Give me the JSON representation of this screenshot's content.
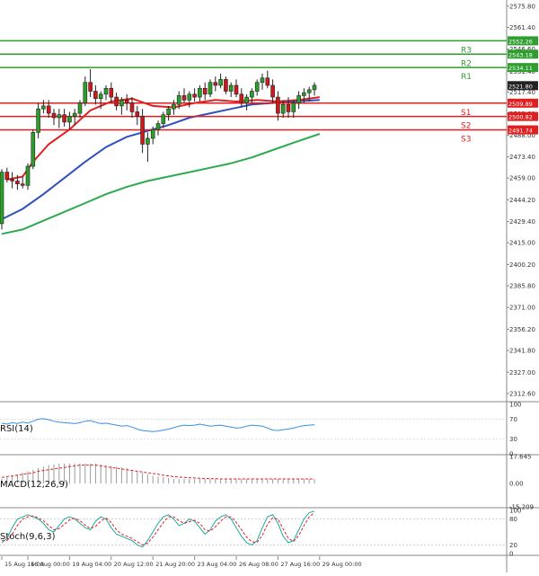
{
  "chart_data": {
    "type": "candlestick",
    "price_axis": {
      "ticks": [
        "2575.80",
        "2561.40",
        "2546.60",
        "2531.40",
        "2517.40",
        "2502.60",
        "2488.00",
        "2473.40",
        "2459.00",
        "2444.20",
        "2429.40",
        "2415.00",
        "2400.20",
        "2385.80",
        "2371.00",
        "2356.20",
        "2341.80",
        "2327.00",
        "2312.60"
      ],
      "ylim": [
        2307,
        2580
      ]
    },
    "time_axis": {
      "labels": [
        "15 Aug 16:00",
        "16 Aug 00:00",
        "19 Aug 04:00",
        "20 Aug 12:00",
        "21 Aug 20:00",
        "23 Aug 04:00",
        "26 Aug 08:00",
        "27 Aug 16:00",
        "29 Aug 00:00"
      ],
      "label_bar_index": [
        0,
        5,
        13,
        21,
        29,
        37,
        45,
        53,
        61
      ]
    },
    "levels": [
      {
        "name": "R3",
        "value": 2552.26,
        "value_label": "2552.26",
        "color": "#2e9e2e"
      },
      {
        "name": "R2",
        "value": 2543.18,
        "value_label": "2543.18",
        "color": "#2e9e2e"
      },
      {
        "name": "R1",
        "value": 2534.11,
        "value_label": "2534.11",
        "color": "#2e9e2e"
      },
      {
        "name": "S1",
        "value": 2509.89,
        "value_label": "2509.89",
        "color": "#e02020"
      },
      {
        "name": "S2",
        "value": 2500.82,
        "value_label": "2500.82",
        "color": "#e02020"
      },
      {
        "name": "S3",
        "value": 2491.74,
        "value_label": "2491.74",
        "color": "#e02020"
      }
    ],
    "current_price": {
      "value": 2521.8,
      "label": "2521.80"
    },
    "candles": [
      [
        2428,
        2465,
        2424,
        2463
      ],
      [
        2463,
        2466,
        2456,
        2458
      ],
      [
        2458,
        2463,
        2452,
        2457
      ],
      [
        2457,
        2461,
        2451,
        2455
      ],
      [
        2455,
        2460,
        2452,
        2454
      ],
      [
        2454,
        2469,
        2451,
        2467
      ],
      [
        2467,
        2492,
        2465,
        2490
      ],
      [
        2490,
        2510,
        2486,
        2506
      ],
      [
        2506,
        2512,
        2503,
        2508
      ],
      [
        2508,
        2512,
        2500,
        2503
      ],
      [
        2503,
        2506,
        2495,
        2500
      ],
      [
        2500,
        2506,
        2493,
        2502
      ],
      [
        2502,
        2506,
        2494,
        2497
      ],
      [
        2497,
        2504,
        2492,
        2501
      ],
      [
        2501,
        2506,
        2495,
        2503
      ],
      [
        2503,
        2512,
        2500,
        2510
      ],
      [
        2510,
        2528,
        2508,
        2524
      ],
      [
        2524,
        2533,
        2514,
        2518
      ],
      [
        2518,
        2522,
        2509,
        2513
      ],
      [
        2513,
        2518,
        2506,
        2516
      ],
      [
        2516,
        2522,
        2512,
        2520
      ],
      [
        2520,
        2524,
        2510,
        2514
      ],
      [
        2514,
        2517,
        2505,
        2508
      ],
      [
        2508,
        2514,
        2502,
        2512
      ],
      [
        2512,
        2516,
        2505,
        2510
      ],
      [
        2510,
        2514,
        2500,
        2504
      ],
      [
        2504,
        2508,
        2495,
        2501
      ],
      [
        2501,
        2506,
        2476,
        2482
      ],
      [
        2482,
        2490,
        2470,
        2486
      ],
      [
        2486,
        2494,
        2482,
        2492
      ],
      [
        2492,
        2498,
        2488,
        2496
      ],
      [
        2496,
        2504,
        2493,
        2502
      ],
      [
        2502,
        2508,
        2498,
        2506
      ],
      [
        2506,
        2512,
        2502,
        2509
      ],
      [
        2509,
        2518,
        2506,
        2515
      ],
      [
        2515,
        2520,
        2510,
        2512
      ],
      [
        2512,
        2518,
        2507,
        2516
      ],
      [
        2516,
        2520,
        2511,
        2514
      ],
      [
        2514,
        2522,
        2511,
        2520
      ],
      [
        2520,
        2524,
        2512,
        2516
      ],
      [
        2516,
        2526,
        2514,
        2524
      ],
      [
        2524,
        2528,
        2518,
        2522
      ],
      [
        2522,
        2530,
        2520,
        2526
      ],
      [
        2526,
        2528,
        2516,
        2518
      ],
      [
        2518,
        2524,
        2514,
        2522
      ],
      [
        2522,
        2526,
        2514,
        2516
      ],
      [
        2516,
        2520,
        2507,
        2510
      ],
      [
        2510,
        2516,
        2505,
        2514
      ],
      [
        2514,
        2520,
        2510,
        2518
      ],
      [
        2518,
        2526,
        2515,
        2524
      ],
      [
        2524,
        2530,
        2519,
        2527
      ],
      [
        2527,
        2532,
        2520,
        2522
      ],
      [
        2522,
        2526,
        2510,
        2514
      ],
      [
        2514,
        2518,
        2498,
        2503
      ],
      [
        2503,
        2512,
        2500,
        2509
      ],
      [
        2509,
        2514,
        2500,
        2504
      ],
      [
        2504,
        2512,
        2500,
        2510
      ],
      [
        2510,
        2518,
        2506,
        2515
      ],
      [
        2515,
        2520,
        2510,
        2517
      ],
      [
        2517,
        2521,
        2511,
        2519
      ],
      [
        2519,
        2524,
        2515,
        2522
      ]
    ],
    "ma_fast": {
      "color": "#e02020",
      "points": [
        [
          1,
          2458
        ],
        [
          4,
          2460
        ],
        [
          6,
          2470
        ],
        [
          9,
          2482
        ],
        [
          13,
          2492
        ],
        [
          17,
          2505
        ],
        [
          21,
          2511
        ],
        [
          25,
          2513
        ],
        [
          29,
          2508
        ],
        [
          33,
          2507
        ],
        [
          37,
          2510
        ],
        [
          41,
          2512
        ],
        [
          45,
          2511
        ],
        [
          49,
          2512
        ],
        [
          53,
          2511
        ],
        [
          57,
          2512
        ],
        [
          61,
          2514
        ]
      ]
    },
    "ma_mid": {
      "color": "#3050c0",
      "points": [
        [
          0,
          2431
        ],
        [
          4,
          2438
        ],
        [
          8,
          2448
        ],
        [
          12,
          2459
        ],
        [
          16,
          2470
        ],
        [
          20,
          2480
        ],
        [
          24,
          2487
        ],
        [
          28,
          2491
        ],
        [
          32,
          2495
        ],
        [
          36,
          2500
        ],
        [
          40,
          2503
        ],
        [
          44,
          2506
        ],
        [
          48,
          2509
        ],
        [
          52,
          2510
        ],
        [
          56,
          2511
        ],
        [
          61,
          2512
        ]
      ]
    },
    "ma_slow": {
      "color": "#2eaa4e",
      "points": [
        [
          0,
          2421
        ],
        [
          4,
          2424
        ],
        [
          8,
          2430
        ],
        [
          12,
          2436
        ],
        [
          16,
          2442
        ],
        [
          20,
          2448
        ],
        [
          24,
          2453
        ],
        [
          28,
          2457
        ],
        [
          32,
          2460
        ],
        [
          36,
          2463
        ],
        [
          40,
          2466
        ],
        [
          44,
          2469
        ],
        [
          48,
          2473
        ],
        [
          52,
          2478
        ],
        [
          56,
          2483
        ],
        [
          61,
          2489
        ]
      ]
    },
    "rsi": {
      "label": "RSI(14)",
      "ticks": [
        "100",
        "70",
        "30",
        "0"
      ],
      "levels": [
        100,
        70,
        30,
        0
      ],
      "values": [
        62,
        60,
        63,
        61,
        64,
        62,
        66,
        70,
        71,
        69,
        66,
        64,
        63,
        62,
        61,
        63,
        66,
        67,
        64,
        61,
        62,
        60,
        58,
        56,
        57,
        54,
        50,
        47,
        46,
        45,
        46,
        48,
        50,
        53,
        56,
        58,
        57,
        58,
        60,
        58,
        56,
        57,
        58,
        56,
        54,
        52,
        53,
        56,
        58,
        57,
        56,
        52,
        48,
        47,
        49,
        50,
        52,
        55,
        57,
        58,
        59
      ]
    },
    "macd": {
      "label": "MACD(12,26,9)",
      "ticks": [
        "17.645",
        "0.00",
        "-15.209"
      ],
      "range": [
        -15.209,
        17.645
      ],
      "hist": [
        3,
        4,
        5,
        6,
        7,
        8,
        9,
        10,
        11,
        12,
        12.5,
        13,
        13,
        13,
        13,
        13,
        13,
        13,
        13,
        12.5,
        12,
        11.5,
        11,
        10.5,
        10,
        9,
        8,
        7,
        6,
        5,
        4.5,
        4,
        3.5,
        3,
        3,
        3,
        3,
        3,
        3,
        3,
        3,
        3,
        3,
        3,
        3,
        3,
        3,
        3,
        3,
        3,
        3,
        3,
        3,
        3,
        3,
        3,
        3,
        3,
        3,
        3,
        3
      ],
      "signal": [
        4,
        4.5,
        5,
        5.5,
        6,
        6.5,
        7,
        8,
        8.5,
        9,
        9.5,
        10,
        10.5,
        11,
        11.5,
        12,
        12,
        12,
        12,
        11.5,
        11,
        10.5,
        10,
        9.5,
        9,
        8.5,
        8,
        7.5,
        7,
        6.5,
        6,
        5.5,
        5,
        4.5,
        4.2,
        4,
        3.8,
        3.6,
        3.4,
        3.3,
        3.2,
        3.1,
        3,
        3,
        3,
        3,
        3,
        3,
        3,
        3,
        3,
        3,
        3,
        3,
        3,
        3,
        3,
        3,
        3,
        3,
        3
      ]
    },
    "stoch": {
      "label": "Stoch(9,6,3)",
      "ticks": [
        "100",
        "80",
        "20",
        "0"
      ],
      "levels": [
        100,
        80,
        20,
        0
      ],
      "k": [
        25,
        35,
        60,
        80,
        85,
        90,
        85,
        80,
        70,
        55,
        50,
        65,
        80,
        85,
        80,
        70,
        60,
        55,
        75,
        85,
        80,
        60,
        45,
        40,
        35,
        30,
        20,
        15,
        30,
        50,
        70,
        85,
        90,
        80,
        65,
        70,
        80,
        75,
        60,
        45,
        55,
        75,
        85,
        90,
        80,
        60,
        40,
        25,
        20,
        30,
        60,
        85,
        90,
        70,
        40,
        25,
        30,
        55,
        80,
        95,
        98
      ],
      "d": [
        30,
        30,
        45,
        65,
        80,
        85,
        87,
        83,
        76,
        65,
        55,
        58,
        68,
        78,
        82,
        76,
        66,
        58,
        63,
        75,
        82,
        72,
        55,
        45,
        40,
        35,
        27,
        20,
        24,
        38,
        55,
        72,
        85,
        85,
        76,
        70,
        74,
        77,
        70,
        55,
        52,
        62,
        75,
        85,
        85,
        72,
        55,
        38,
        27,
        26,
        42,
        68,
        83,
        80,
        57,
        35,
        28,
        42,
        65,
        85,
        95
      ]
    }
  }
}
